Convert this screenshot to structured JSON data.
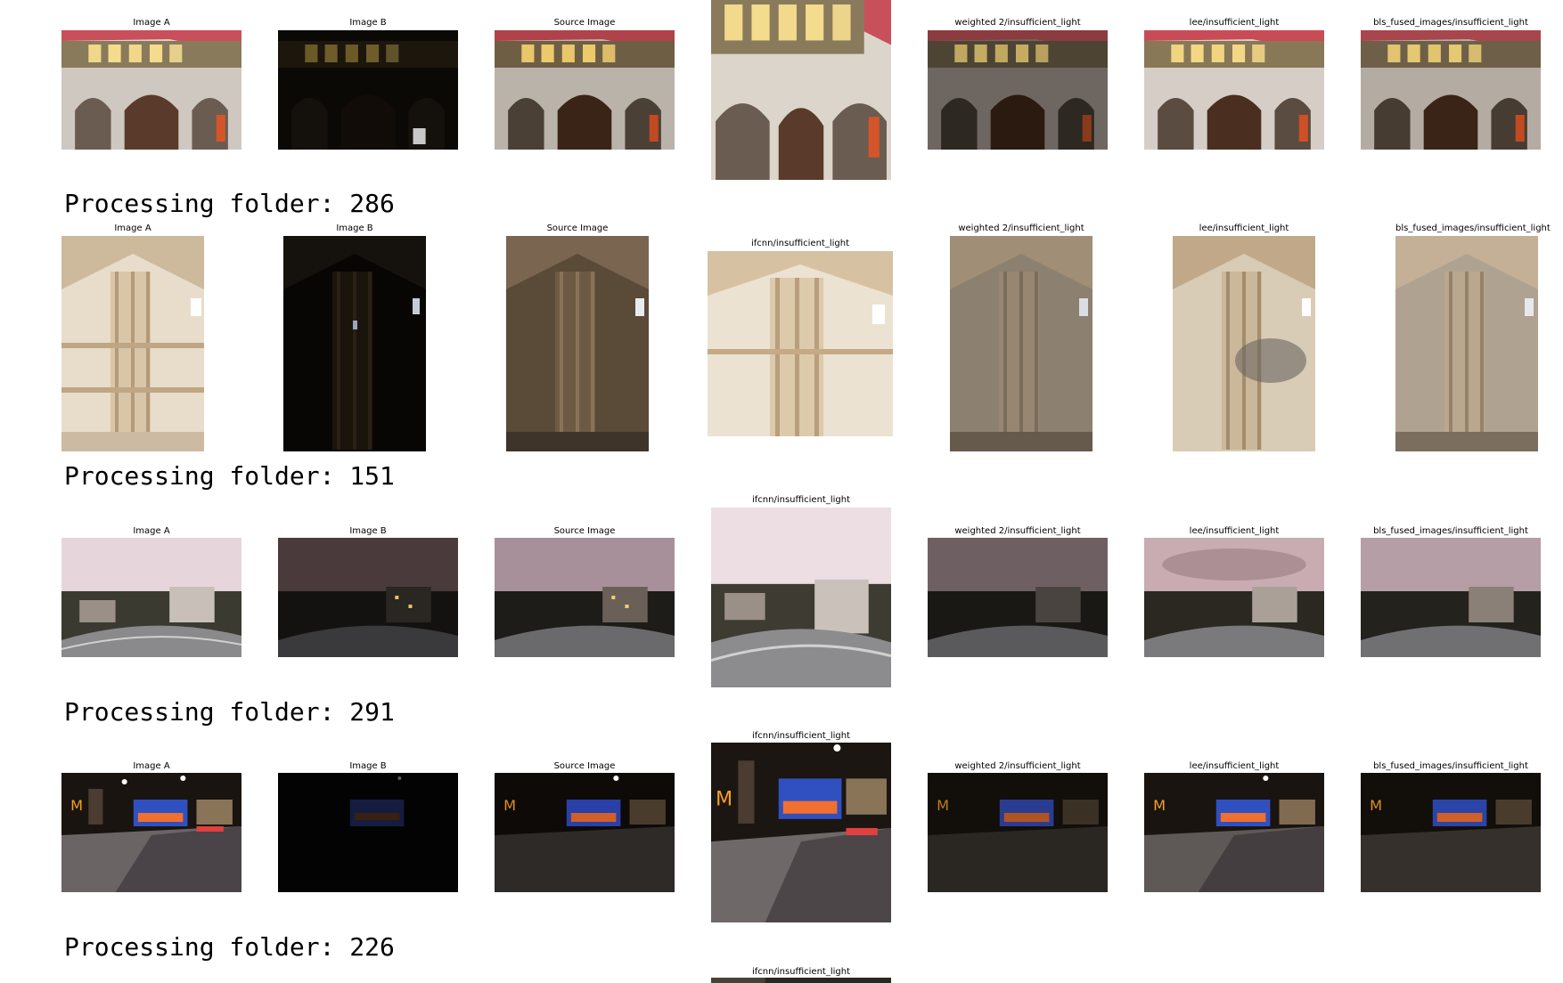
{
  "captions": {
    "image_a": "Image A",
    "image_b": "Image B",
    "source": "Source Image",
    "ifcnn": "ifcnn/insufficient_light",
    "weighted": "weighted 2/insufficient_light",
    "lee": "lee/insufficient_light",
    "bls": "bls_fused_images/insufficient_light"
  },
  "folders": [
    {
      "label": "Processing folder: 286"
    },
    {
      "label": "Processing folder: 151"
    },
    {
      "label": "Processing folder: 291"
    },
    {
      "label": "Processing folder: 226"
    }
  ],
  "scenes": {
    "row1": "building-facade",
    "row2": "wooden-tower-interior",
    "row3": "city-skyline-dusk",
    "row4": "night-street-plaza"
  }
}
